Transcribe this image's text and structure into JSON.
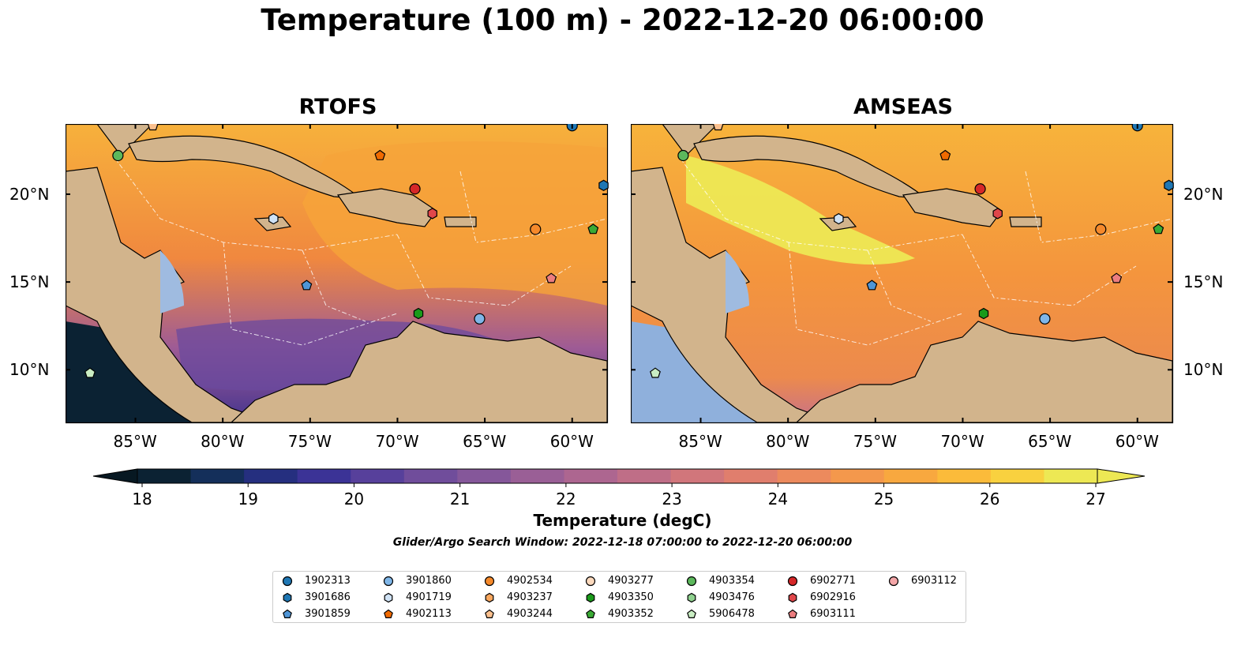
{
  "title": "Temperature (100 m) - 2022-12-20 06:00:00",
  "panels": [
    {
      "title": "RTOFS",
      "ocean_color": "#f59a3a"
    },
    {
      "title": "AMSEAS",
      "ocean_color": "#f79b3c"
    }
  ],
  "longitude_labels": [
    "85°W",
    "80°W",
    "75°W",
    "70°W",
    "65°W",
    "60°W"
  ],
  "latitude_labels": [
    "20°N",
    "15°N",
    "10°N"
  ],
  "colorbar": {
    "ticks": [
      "18",
      "19",
      "20",
      "21",
      "22",
      "23",
      "24",
      "25",
      "26",
      "27"
    ],
    "label": "Temperature (degC)",
    "colors": [
      "#0b2233",
      "#142f5a",
      "#252f7f",
      "#3b3396",
      "#57409b",
      "#704d9b",
      "#85579a",
      "#9a5f96",
      "#ad6690",
      "#bf6e87",
      "#d1767b",
      "#e07e6d",
      "#ec8a5d",
      "#f4984c",
      "#f8a83f",
      "#fbbb3a",
      "#f9d13f",
      "#ede854"
    ]
  },
  "search_window": "Glider/Argo Search Window: 2022-12-18 07:00:00 to 2022-12-20 06:00:00",
  "chart_data": {
    "type": "map",
    "extent": {
      "lon": [
        -89,
        -58
      ],
      "lat": [
        7,
        24
      ]
    },
    "legend": [
      {
        "id": "1902313",
        "shape": "circle",
        "color": "#1f77b4"
      },
      {
        "id": "3901686",
        "shape": "hexagon",
        "color": "#1f77b4"
      },
      {
        "id": "3901859",
        "shape": "pentagon",
        "color": "#4f95d6"
      },
      {
        "id": "3901860",
        "shape": "circle",
        "color": "#7fb6e8"
      },
      {
        "id": "4901719",
        "shape": "hexagon",
        "color": "#cfe2f5"
      },
      {
        "id": "4902113",
        "shape": "pentagon",
        "color": "#f06a00"
      },
      {
        "id": "4902534",
        "shape": "circle",
        "color": "#f5892b"
      },
      {
        "id": "4903237",
        "shape": "hexagon",
        "color": "#f9a75e"
      },
      {
        "id": "4903244",
        "shape": "pentagon",
        "color": "#fbc08e"
      },
      {
        "id": "4903277",
        "shape": "circle",
        "color": "#fbd9bd"
      },
      {
        "id": "4903350",
        "shape": "hexagon",
        "color": "#1a9a1a"
      },
      {
        "id": "4903352",
        "shape": "pentagon",
        "color": "#3aaa35"
      },
      {
        "id": "4903354",
        "shape": "circle",
        "color": "#5cb85c"
      },
      {
        "id": "4903476",
        "shape": "hexagon",
        "color": "#8fd18f"
      },
      {
        "id": "5906478",
        "shape": "pentagon",
        "color": "#c9edc3"
      },
      {
        "id": "6902771",
        "shape": "circle",
        "color": "#d62728"
      },
      {
        "id": "6902916",
        "shape": "hexagon",
        "color": "#e0474a"
      },
      {
        "id": "6903111",
        "shape": "pentagon",
        "color": "#ec7d7f"
      },
      {
        "id": "6903112",
        "shape": "circle",
        "color": "#f4a6a8"
      }
    ],
    "floats": [
      {
        "id": "1902313",
        "lon": -60.0,
        "lat": 23.9
      },
      {
        "id": "3901686",
        "lon": -58.2,
        "lat": 20.5
      },
      {
        "id": "3901859",
        "lon": -75.2,
        "lat": 14.8
      },
      {
        "id": "3901860",
        "lon": -65.3,
        "lat": 12.9
      },
      {
        "id": "4901719",
        "lon": -77.1,
        "lat": 18.6
      },
      {
        "id": "4902113",
        "lon": -71.0,
        "lat": 22.2
      },
      {
        "id": "4902534",
        "lon": -62.1,
        "lat": 18.0
      },
      {
        "id": "4903244",
        "lon": -84.0,
        "lat": 23.9
      },
      {
        "id": "4903350",
        "lon": -68.8,
        "lat": 13.2
      },
      {
        "id": "4903352",
        "lon": -58.8,
        "lat": 18.0
      },
      {
        "id": "4903354",
        "lon": -86.0,
        "lat": 22.2
      },
      {
        "id": "5906478",
        "lon": -87.6,
        "lat": 9.8
      },
      {
        "id": "6902771",
        "lon": -69.0,
        "lat": 20.3
      },
      {
        "id": "6902916",
        "lon": -68.0,
        "lat": 18.9
      },
      {
        "id": "6903111",
        "lon": -61.2,
        "lat": 15.2
      }
    ]
  }
}
